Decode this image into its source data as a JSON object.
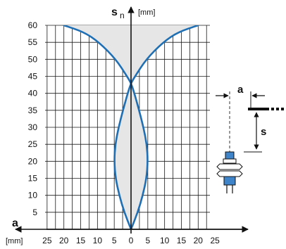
{
  "chart_data": {
    "type": "area",
    "title": "",
    "y_label": {
      "symbol": "s",
      "subscript": "n",
      "unit": "[mm]"
    },
    "x_label": {
      "symbol": "a",
      "unit": "[mm]"
    },
    "y_range": [
      0,
      60
    ],
    "x_range": [
      -25,
      25
    ],
    "grid": true,
    "y_ticks": [
      "5",
      "10",
      "15",
      "20",
      "25",
      "30",
      "35",
      "40",
      "45",
      "50",
      "55",
      "60"
    ],
    "x_ticks": [
      "25",
      "20",
      "15",
      "10",
      "5",
      "0",
      "5",
      "10",
      "15",
      "20",
      "25"
    ],
    "x_tick_values": [
      -25,
      -20,
      -15,
      -10,
      -5,
      0,
      5,
      10,
      15,
      20,
      25
    ],
    "curves": [
      {
        "name": "",
        "description": "lens-shaped inner envelope",
        "points": [
          [
            0,
            0
          ],
          [
            2,
            5
          ],
          [
            3.5,
            10
          ],
          [
            4.6,
            15
          ],
          [
            5,
            20
          ],
          [
            4.7,
            25
          ],
          [
            3.7,
            30
          ],
          [
            2.4,
            35
          ],
          [
            1.0,
            40
          ],
          [
            0,
            43
          ]
        ]
      },
      {
        "name": "",
        "description": "outer cusp envelope above crossing",
        "points": [
          [
            0,
            43
          ],
          [
            1.2,
            45
          ],
          [
            4.5,
            50
          ],
          [
            9.5,
            55
          ],
          [
            14,
            58
          ],
          [
            20,
            60
          ]
        ]
      }
    ],
    "crossing_point": {
      "x": 0,
      "y": 43
    },
    "colors": {
      "curve": "#1f6fb4",
      "fill": "#e6e6e6",
      "grid": "#1a1a1a"
    }
  },
  "inset": {
    "label_a": "a",
    "label_s": "s",
    "sensor_colors": {
      "body_blue": "#3f84c8",
      "nut": "#ffffff"
    }
  }
}
